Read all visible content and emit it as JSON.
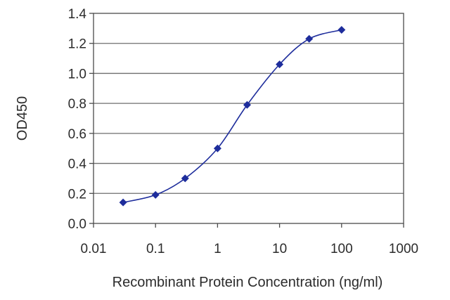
{
  "chart_data": {
    "type": "line",
    "title": "",
    "xlabel": "Recombinant Protein Concentration (ng/ml)",
    "ylabel": "OD450",
    "xscale": "log",
    "xlim": [
      0.01,
      1000
    ],
    "ylim": [
      0.0,
      1.4
    ],
    "grid": "horizontal",
    "legend": "none",
    "x_ticks": [
      "0.01",
      "0.1",
      "1",
      "10",
      "100",
      "1000"
    ],
    "y_ticks": [
      "0.0",
      "0.2",
      "0.4",
      "0.6",
      "0.8",
      "1.0",
      "1.2",
      "1.4"
    ],
    "series": [
      {
        "color": "#1e2d9c",
        "marker": "diamond",
        "x": [
          0.03,
          0.1,
          0.3,
          1,
          3,
          10,
          30,
          100
        ],
        "y": [
          0.14,
          0.19,
          0.3,
          0.5,
          0.79,
          1.06,
          1.23,
          1.29
        ]
      }
    ]
  }
}
